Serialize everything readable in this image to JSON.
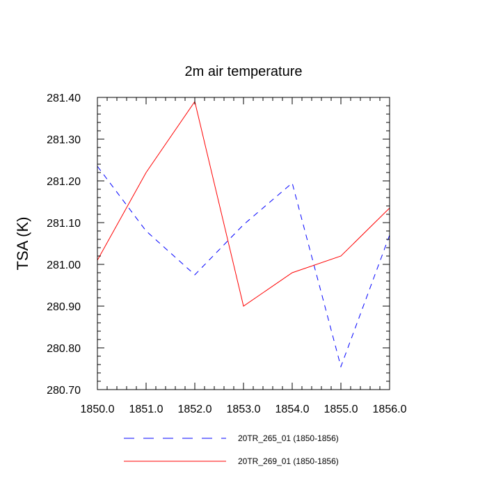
{
  "chart_data": {
    "type": "line",
    "title": "2m air temperature",
    "xlabel": "",
    "ylabel": "TSA  (K)",
    "x": [
      1850,
      1851,
      1852,
      1853,
      1854,
      1855,
      1856
    ],
    "xlim": [
      1850,
      1856
    ],
    "ylim": [
      280.7,
      281.4
    ],
    "xticks": [
      "1850.0",
      "1851.0",
      "1852.0",
      "1853.0",
      "1854.0",
      "1855.0",
      "1856.0"
    ],
    "yticks": [
      "280.70",
      "280.80",
      "280.90",
      "281.00",
      "281.10",
      "281.20",
      "281.30",
      "281.40"
    ],
    "grid": false,
    "legend_position": "bottom",
    "series": [
      {
        "name": "20TR_265_01 (1850-1856)",
        "values": [
          281.235,
          281.08,
          280.975,
          281.095,
          281.195,
          280.755,
          281.07
        ],
        "color": "#0000ff",
        "style": "dashed"
      },
      {
        "name": "20TR_269_01 (1850-1856)",
        "values": [
          281.01,
          281.22,
          281.39,
          280.9,
          280.98,
          281.02,
          281.135
        ],
        "color": "#ff0000",
        "style": "solid"
      }
    ]
  }
}
